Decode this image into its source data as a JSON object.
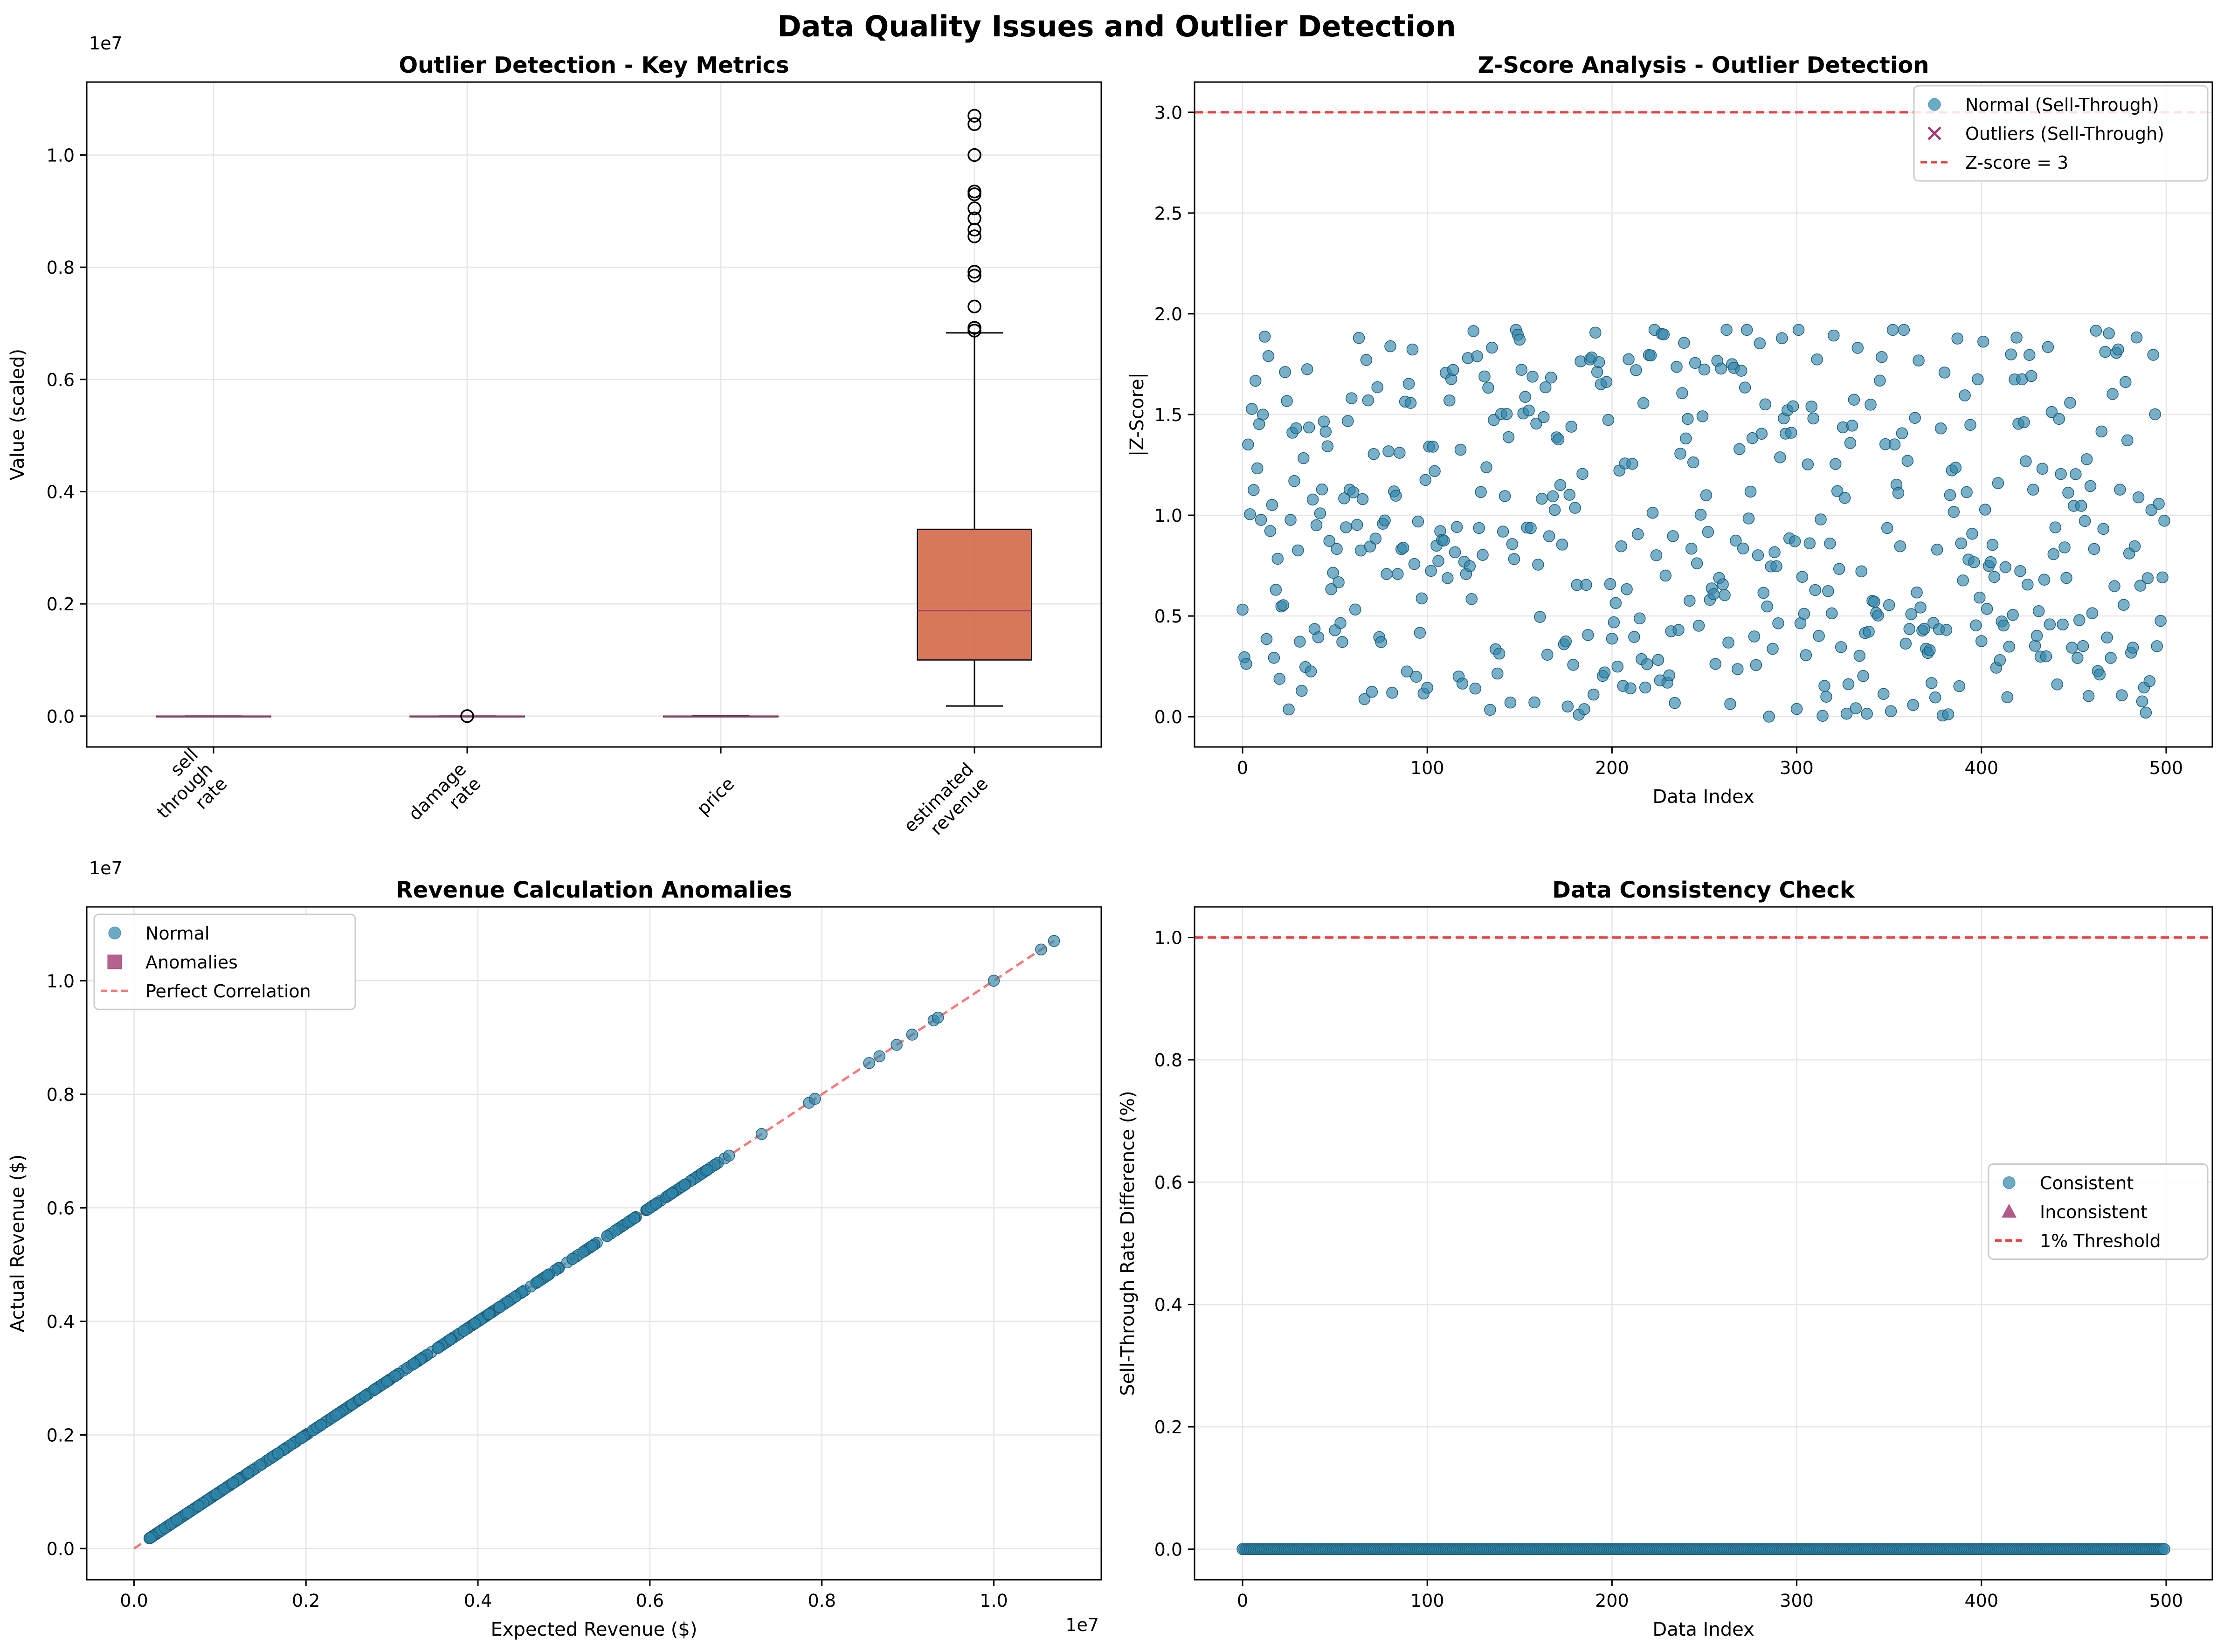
{
  "figure": {
    "title": "Data Quality Issues and Outlier Detection"
  },
  "colors": {
    "normal_point": "#2E86AB",
    "outlier": "#A23B72",
    "box_fill": "#D1603D",
    "median_line": "#A23B72",
    "threshold_line": "#E84040",
    "perfect_line": "#F47A7A",
    "grid": "#E6E6E6"
  },
  "chart_data": [
    {
      "id": "boxplot",
      "type": "box",
      "title": "Outlier Detection - Key Metrics",
      "xlabel": "",
      "ylabel": "Value (scaled)",
      "y_offset_label": "1e7",
      "ylim": [
        -0.55,
        11.3
      ],
      "grid": true,
      "yticks": [
        0.0,
        0.2,
        0.4,
        0.6,
        0.8,
        1.0
      ],
      "ytick_labels": [
        "0.0",
        "0.2",
        "0.4",
        "0.6",
        "0.8",
        "1.0"
      ],
      "ytick_values": [
        0,
        2,
        4,
        6,
        8,
        10
      ],
      "categories": [
        "sell\nthrough\nrate",
        "damage\nrate",
        "price",
        "estimated\nrevenue"
      ],
      "boxes": [
        {
          "category": "sell\nthrough\nrate",
          "q1": 0,
          "median": 0,
          "q3": 0,
          "whisker_low": 0,
          "whisker_high": 0,
          "outliers": []
        },
        {
          "category": "damage\nrate",
          "q1": 0,
          "median": 0,
          "q3": 0,
          "whisker_low": 0,
          "whisker_high": 0,
          "outliers": [
            0.0
          ]
        },
        {
          "category": "price",
          "q1": 0,
          "median": 0,
          "q3": 0,
          "whisker_low": 0,
          "whisker_high": 0.01,
          "outliers": []
        },
        {
          "category": "estimated\nrevenue",
          "q1": 1.0,
          "median": 1.88,
          "q3": 3.33,
          "whisker_low": 0.18,
          "whisker_high": 6.83,
          "outliers": [
            6.87,
            6.92,
            7.3,
            7.85,
            7.92,
            8.55,
            8.67,
            8.87,
            9.05,
            9.3,
            9.35,
            10.0,
            10.55,
            10.7
          ]
        }
      ]
    },
    {
      "id": "zscore",
      "type": "scatter",
      "title": "Z-Score Analysis - Outlier Detection",
      "xlabel": "Data Index",
      "ylabel": "|Z-Score|",
      "xlim": [
        -26,
        525
      ],
      "ylim": [
        -0.15,
        3.15
      ],
      "grid": true,
      "xticks": [
        0,
        100,
        200,
        300,
        400,
        500
      ],
      "xtick_labels": [
        "0",
        "100",
        "200",
        "300",
        "400",
        "500"
      ],
      "yticks": [
        0.0,
        0.5,
        1.0,
        1.5,
        2.0,
        2.5,
        3.0
      ],
      "ytick_labels": [
        "0.0",
        "0.5",
        "1.0",
        "1.5",
        "2.0",
        "2.5",
        "3.0"
      ],
      "n_points": 500,
      "max_abs_z": 1.92,
      "threshold": 3,
      "legend": [
        "Normal (Sell-Through)",
        "Outliers (Sell-Through)",
        "Z-score = 3"
      ],
      "legend_position": "upper right",
      "outlier_count": 0
    },
    {
      "id": "revenue",
      "type": "scatter",
      "title": "Revenue Calculation Anomalies",
      "xlabel": "Expected Revenue ($)",
      "ylabel": "Actual Revenue ($)",
      "x_offset_label": "1e7",
      "y_offset_label": "1e7",
      "xlim": [
        -0.55,
        11.25
      ],
      "ylim": [
        -0.55,
        11.3
      ],
      "grid": true,
      "xticks": [
        0,
        2,
        4,
        6,
        8,
        10
      ],
      "xtick_labels": [
        "0.0",
        "0.2",
        "0.4",
        "0.6",
        "0.8",
        "1.0"
      ],
      "yticks": [
        0,
        2,
        4,
        6,
        8,
        10
      ],
      "ytick_labels": [
        "0.0",
        "0.2",
        "0.4",
        "0.6",
        "0.8",
        "1.0"
      ],
      "min_value": 0.18,
      "max_value": 10.7,
      "high_values": [
        6.87,
        6.92,
        7.3,
        7.85,
        7.92,
        8.55,
        8.67,
        8.87,
        9.05,
        9.3,
        9.35,
        10.0,
        10.55,
        10.7
      ],
      "legend": [
        "Normal",
        "Anomalies",
        "Perfect Correlation"
      ],
      "legend_position": "upper left",
      "anomaly_count": 0
    },
    {
      "id": "consistency",
      "type": "scatter",
      "title": "Data Consistency Check",
      "xlabel": "Data Index",
      "ylabel": "Sell-Through Rate Difference (%)",
      "xlim": [
        -26,
        525
      ],
      "ylim": [
        -0.05,
        1.05
      ],
      "grid": true,
      "xticks": [
        0,
        100,
        200,
        300,
        400,
        500
      ],
      "xtick_labels": [
        "0",
        "100",
        "200",
        "300",
        "400",
        "500"
      ],
      "yticks": [
        0.0,
        0.2,
        0.4,
        0.6,
        0.8,
        1.0
      ],
      "ytick_labels": [
        "0.0",
        "0.2",
        "0.4",
        "0.6",
        "0.8",
        "1.0"
      ],
      "n_points": 500,
      "difference_value": 0.0,
      "threshold": 1,
      "legend": [
        "Consistent",
        "Inconsistent",
        "1% Threshold"
      ],
      "legend_position": "center right",
      "inconsistent_count": 0
    }
  ]
}
